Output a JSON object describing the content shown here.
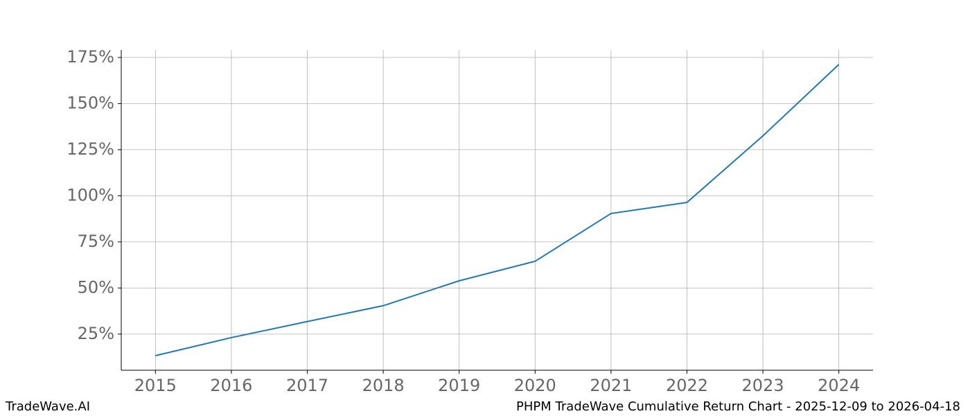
{
  "chart_data": {
    "type": "line",
    "title": "PHPM TradeWave Cumulative Return Chart - 2025-12-09 to 2026-04-18",
    "brand": "TradeWave.AI",
    "x": [
      2015,
      2016,
      2017,
      2018,
      2019,
      2020,
      2021,
      2022,
      2023,
      2024
    ],
    "series": [
      {
        "name": "PHPM",
        "color": "#1f77b4",
        "values": [
          13.3,
          23.1,
          31.8,
          40.4,
          53.9,
          64.5,
          90.4,
          96.4,
          132.5,
          171.2
        ]
      }
    ],
    "xlim": [
      2014.55,
      2024.45
    ],
    "xticks": [
      2015,
      2016,
      2017,
      2018,
      2019,
      2020,
      2021,
      2022,
      2023,
      2024
    ],
    "ylim": [
      5.4,
      179.1
    ],
    "yticks": [
      {
        "value": 25,
        "label": "25%"
      },
      {
        "value": 50,
        "label": "50%"
      },
      {
        "value": 75,
        "label": "75%"
      },
      {
        "value": 100,
        "label": "100%"
      },
      {
        "value": 125,
        "label": "125%"
      },
      {
        "value": 150,
        "label": "150%"
      },
      {
        "value": 175,
        "label": "175%"
      }
    ],
    "grid": true
  }
}
